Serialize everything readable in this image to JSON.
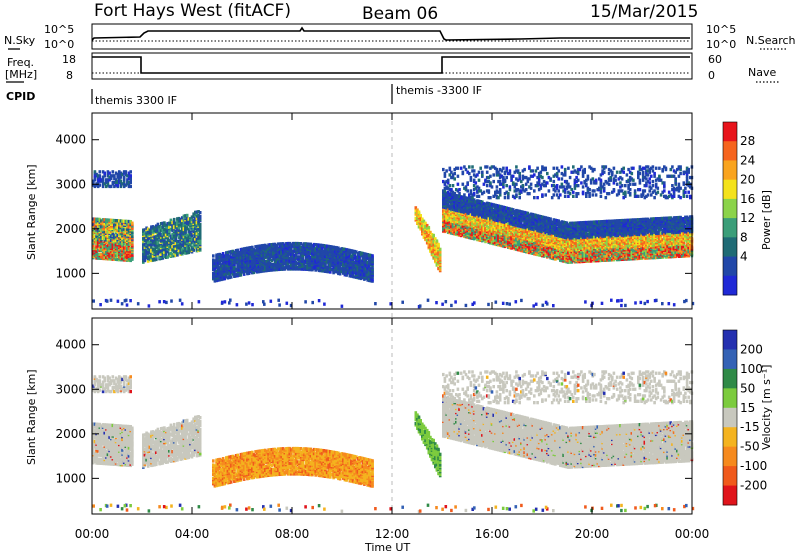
{
  "header": {
    "station": "Fort Hays West (fitACF)",
    "beam": "Beam 06",
    "date": "15/Mar/2015"
  },
  "side_labels": {
    "nsky": "N.Sky",
    "freq_line1": "Freq.",
    "freq_line2": "[MHz]",
    "cpid": "CPID",
    "nsearch": "N.Search",
    "nave": "Nave"
  },
  "nsky_ticks": [
    "10^5",
    "10^0"
  ],
  "nsearch_ticks": [
    "10^5",
    "10^0"
  ],
  "freq_ticks": [
    "18",
    "8"
  ],
  "nave_ticks": [
    "60",
    "0"
  ],
  "cpid_segments": [
    "themis 3300 IF",
    "themis -3300 IF"
  ],
  "colorbars": {
    "power": {
      "label": "Power [dB]",
      "ticks": [
        "28",
        "24",
        "20",
        "16",
        "12",
        "8",
        "4"
      ],
      "colors": [
        "#e8141b",
        "#f6641e",
        "#f9a41f",
        "#f4e21b",
        "#8bd34a",
        "#3b9e79",
        "#1f6b75",
        "#2147a8",
        "#1f29d6"
      ]
    },
    "velocity": {
      "label": "Velocity [m s⁻¹]",
      "ticks": [
        "200",
        "100",
        "50",
        "15",
        "-15",
        "-50",
        "-100",
        "-200"
      ],
      "colors": [
        "#2430b0",
        "#3462b5",
        "#2f8a47",
        "#7ccb3e",
        "#c8c8be",
        "#f4b31f",
        "#f68a1e",
        "#f05a1c",
        "#e0141b"
      ]
    }
  },
  "chart_data": [
    {
      "type": "heatmap",
      "title": "Power",
      "ylabel": "Slant Range [km]",
      "xlabel": "Time UT",
      "x_ticks": [
        "00:00",
        "04:00",
        "08:00",
        "12:00",
        "16:00",
        "20:00",
        "00:00"
      ],
      "y_ticks": [
        1000,
        2000,
        3000,
        4000
      ],
      "ylim": [
        200,
        4600
      ],
      "xlim_hours": [
        0,
        24
      ],
      "colorbar_range_db": [
        0,
        30
      ],
      "regions": [
        {
          "t_start": 0.0,
          "t_end": 1.6,
          "range_km": [
            1300,
            2300
          ],
          "level": "mixed"
        },
        {
          "t_start": 0.0,
          "t_end": 1.5,
          "range_km": [
            2900,
            3300
          ],
          "level": "low"
        },
        {
          "t_start": 2.0,
          "t_end": 4.3,
          "range_km": [
            1200,
            2400
          ],
          "level": "low-mid"
        },
        {
          "t_start": 4.8,
          "t_end": 11.2,
          "range_km": [
            800,
            1800
          ],
          "level": "low"
        },
        {
          "t_start": 12.9,
          "t_end": 13.9,
          "range_km": [
            1000,
            2500
          ],
          "level": "mid-high"
        },
        {
          "t_start": 14.0,
          "t_end": 24.0,
          "range_km": [
            1300,
            2700
          ],
          "level": "high"
        },
        {
          "t_start": 14.0,
          "t_end": 24.0,
          "range_km": [
            2700,
            3400
          ],
          "level": "low"
        }
      ]
    },
    {
      "type": "heatmap",
      "title": "Velocity",
      "ylabel": "Slant Range [km]",
      "xlabel": "Time UT",
      "x_ticks": [
        "00:00",
        "04:00",
        "08:00",
        "12:00",
        "16:00",
        "20:00",
        "00:00"
      ],
      "y_ticks": [
        1000,
        2000,
        3000,
        4000
      ],
      "ylim": [
        200,
        4600
      ],
      "xlim_hours": [
        0,
        24
      ],
      "colorbar_range": [
        -250,
        250
      ],
      "regions": [
        {
          "t_start": 0.0,
          "t_end": 1.6,
          "range_km": [
            1300,
            2300
          ],
          "velocity": "near zero (ground scatter)"
        },
        {
          "t_start": 2.0,
          "t_end": 4.3,
          "range_km": [
            1200,
            2400
          ],
          "velocity": "near zero with negative patches"
        },
        {
          "t_start": 4.8,
          "t_end": 11.2,
          "range_km": [
            800,
            1800
          ],
          "velocity": "-50 to -100"
        },
        {
          "t_start": 12.9,
          "t_end": 13.9,
          "range_km": [
            1000,
            2500
          ],
          "velocity": "15 to 50"
        },
        {
          "t_start": 14.0,
          "t_end": 24.0,
          "range_km": [
            1300,
            3400
          ],
          "velocity": "near zero (ground scatter)"
        }
      ]
    }
  ]
}
